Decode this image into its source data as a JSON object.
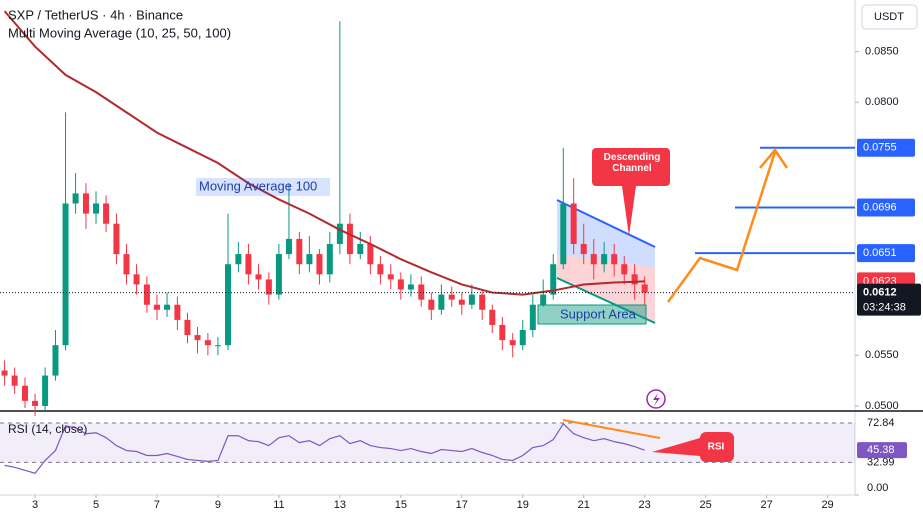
{
  "header": {
    "symbol": "SXP / TetherUS · 4h · Binance",
    "indicator": "Multi Moving Average (10, 25, 50, 100)",
    "currency": "USDT"
  },
  "chart_data": {
    "type": "candlestick",
    "x": [
      2,
      2.33,
      2.67,
      3,
      3.33,
      3.67,
      4,
      4.33,
      4.67,
      5,
      5.33,
      5.67,
      6,
      6.33,
      6.67,
      7,
      7.33,
      7.67,
      8,
      8.33,
      8.67,
      9,
      9.33,
      9.67,
      10,
      10.33,
      10.67,
      11,
      11.33,
      11.67,
      12,
      12.33,
      12.67,
      13,
      13.33,
      13.67,
      14,
      14.33,
      14.67,
      15,
      15.33,
      15.67,
      16,
      16.33,
      16.67,
      17,
      17.33,
      17.67,
      18,
      18.33,
      18.67,
      19,
      19.33,
      19.67,
      20,
      20.33,
      20.67,
      21,
      21.33,
      21.67,
      22,
      22.33,
      22.67,
      23
    ],
    "open": [
      0.0535,
      0.053,
      0.052,
      0.0505,
      0.05,
      0.053,
      0.056,
      0.07,
      0.071,
      0.069,
      0.07,
      0.068,
      0.065,
      0.063,
      0.062,
      0.06,
      0.0595,
      0.06,
      0.0585,
      0.057,
      0.0565,
      0.056,
      0.056,
      0.064,
      0.065,
      0.063,
      0.0625,
      0.061,
      0.065,
      0.0665,
      0.064,
      0.065,
      0.063,
      0.066,
      0.068,
      0.065,
      0.066,
      0.064,
      0.063,
      0.0625,
      0.0615,
      0.062,
      0.0605,
      0.0595,
      0.061,
      0.0605,
      0.06,
      0.061,
      0.0595,
      0.058,
      0.0565,
      0.056,
      0.0575,
      0.06,
      0.061,
      0.064,
      0.07,
      0.066,
      0.065,
      0.064,
      0.065,
      0.064,
      0.063,
      0.062
    ],
    "high": [
      0.0545,
      0.0538,
      0.0528,
      0.0512,
      0.0538,
      0.0575,
      0.079,
      0.073,
      0.072,
      0.0712,
      0.0708,
      0.069,
      0.066,
      0.064,
      0.0628,
      0.061,
      0.0612,
      0.0608,
      0.0592,
      0.0578,
      0.0572,
      0.0568,
      0.069,
      0.0662,
      0.066,
      0.064,
      0.0632,
      0.066,
      0.072,
      0.0672,
      0.0668,
      0.0655,
      0.0672,
      0.088,
      0.069,
      0.0672,
      0.0668,
      0.0648,
      0.064,
      0.0632,
      0.063,
      0.0628,
      0.0612,
      0.062,
      0.0618,
      0.0612,
      0.062,
      0.0615,
      0.06,
      0.0588,
      0.0572,
      0.0585,
      0.061,
      0.0625,
      0.065,
      0.0755,
      0.0725,
      0.068,
      0.0665,
      0.0662,
      0.066,
      0.0648,
      0.064,
      0.0628
    ],
    "low": [
      0.052,
      0.0512,
      0.0498,
      0.049,
      0.0495,
      0.0525,
      0.0555,
      0.069,
      0.0675,
      0.068,
      0.0672,
      0.064,
      0.062,
      0.061,
      0.0592,
      0.0585,
      0.0588,
      0.0575,
      0.0562,
      0.0552,
      0.055,
      0.055,
      0.0555,
      0.0632,
      0.062,
      0.0615,
      0.06,
      0.0605,
      0.0645,
      0.063,
      0.0632,
      0.062,
      0.0622,
      0.065,
      0.064,
      0.0645,
      0.063,
      0.062,
      0.0615,
      0.0605,
      0.0608,
      0.0598,
      0.0585,
      0.059,
      0.0598,
      0.059,
      0.0596,
      0.0585,
      0.0572,
      0.0555,
      0.0548,
      0.0555,
      0.0568,
      0.0598,
      0.0605,
      0.0635,
      0.065,
      0.064,
      0.0625,
      0.0632,
      0.0628,
      0.062,
      0.0605,
      0.06
    ],
    "close": [
      0.053,
      0.052,
      0.0505,
      0.05,
      0.053,
      0.056,
      0.07,
      0.071,
      0.069,
      0.07,
      0.068,
      0.065,
      0.063,
      0.062,
      0.06,
      0.0595,
      0.06,
      0.0585,
      0.057,
      0.0565,
      0.056,
      0.056,
      0.064,
      0.065,
      0.063,
      0.0625,
      0.061,
      0.065,
      0.0665,
      0.064,
      0.065,
      0.063,
      0.066,
      0.068,
      0.065,
      0.066,
      0.064,
      0.063,
      0.0625,
      0.0615,
      0.062,
      0.0605,
      0.0595,
      0.061,
      0.0605,
      0.06,
      0.061,
      0.0595,
      0.058,
      0.0565,
      0.056,
      0.0575,
      0.06,
      0.061,
      0.064,
      0.07,
      0.066,
      0.065,
      0.064,
      0.065,
      0.064,
      0.063,
      0.062,
      0.0612
    ],
    "up_color": "#089981",
    "down_color": "#f23645",
    "xlim": [
      1.85,
      29.9
    ],
    "xticks": [
      3,
      5,
      7,
      9,
      11,
      13,
      15,
      17,
      19,
      21,
      23,
      25,
      27,
      29
    ],
    "ylim": [
      0.0496,
      0.0901
    ],
    "yticks": [
      {
        "value": 0.085,
        "label": "0.0850"
      },
      {
        "value": 0.08,
        "label": "0.0800"
      },
      {
        "value": 0.055,
        "label": "0.0550"
      },
      {
        "value": 0.05,
        "label": "0.0500"
      }
    ],
    "moving_average": {
      "name": "Moving Average 100",
      "color": "#b2292e",
      "x": [
        2,
        3,
        4,
        5,
        6,
        7,
        8,
        9,
        10,
        11,
        12,
        13,
        14,
        15,
        16,
        17,
        18,
        19,
        20,
        21,
        22,
        23
      ],
      "values": [
        0.089,
        0.0855,
        0.0827,
        0.081,
        0.079,
        0.077,
        0.0755,
        0.074,
        0.072,
        0.0704,
        0.069,
        0.0674,
        0.066,
        0.0645,
        0.0632,
        0.062,
        0.0612,
        0.061,
        0.0614,
        0.062,
        0.0622,
        0.0623
      ]
    },
    "levels": [
      0.0755,
      0.0696,
      0.0651
    ],
    "level_color": "#2962ff",
    "countdown": "03:24:38",
    "annotations": {
      "channel": "Descending Channel",
      "support": "Support Area"
    },
    "rsi": {
      "title": "RSI (14, close)",
      "color": "#7e57c2",
      "values": [
        30,
        28,
        25,
        22,
        35,
        45,
        70,
        68,
        62,
        63,
        58,
        50,
        45,
        44,
        40,
        40,
        42,
        39,
        36,
        35,
        34,
        35,
        60,
        60,
        55,
        54,
        50,
        58,
        60,
        53,
        55,
        50,
        57,
        60,
        52,
        55,
        50,
        48,
        47,
        45,
        47,
        44,
        42,
        46,
        45,
        44,
        47,
        43,
        40,
        36,
        35,
        40,
        48,
        50,
        56,
        72,
        62,
        58,
        55,
        57,
        54,
        52,
        49,
        45.38
      ],
      "ylim": [
        0,
        84
      ],
      "yticks": [
        72.84,
        32.99,
        {
          "value": 0,
          "label": "0.00"
        }
      ],
      "callout": "RSI"
    }
  }
}
